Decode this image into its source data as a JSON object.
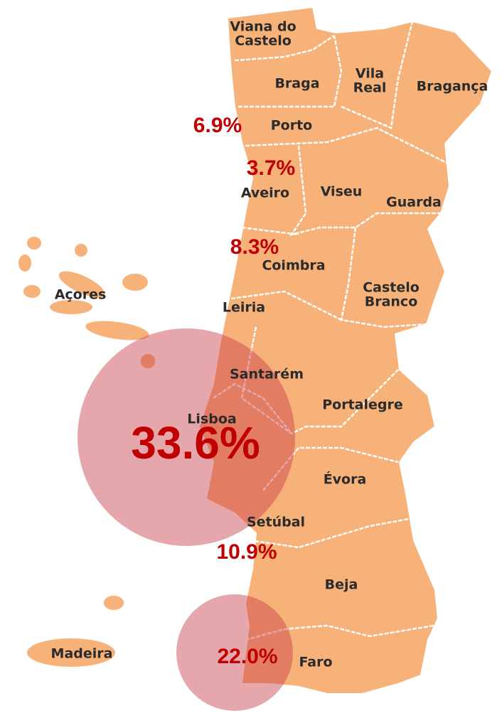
{
  "districts": [
    {
      "lines": [
        "Viana do",
        "Castelo"
      ]
    },
    {
      "lines": [
        "Braga"
      ]
    },
    {
      "lines": [
        "Vila",
        "Real"
      ]
    },
    {
      "lines": [
        "Bragança"
      ]
    },
    {
      "lines": [
        "Porto"
      ]
    },
    {
      "lines": [
        "Aveiro"
      ]
    },
    {
      "lines": [
        "Viseu"
      ]
    },
    {
      "lines": [
        "Guarda"
      ]
    },
    {
      "lines": [
        "Coimbra"
      ]
    },
    {
      "lines": [
        "Castelo",
        "Branco"
      ]
    },
    {
      "lines": [
        "Leiria"
      ]
    },
    {
      "lines": [
        "Açores"
      ]
    },
    {
      "lines": [
        "Santarém"
      ]
    },
    {
      "lines": [
        "Portalegre"
      ]
    },
    {
      "lines": [
        "Lisboa"
      ]
    },
    {
      "lines": [
        "Évora"
      ]
    },
    {
      "lines": [
        "Setúbal"
      ]
    },
    {
      "lines": [
        "Beja"
      ]
    },
    {
      "lines": [
        "Madeira"
      ]
    },
    {
      "lines": [
        "Faro"
      ]
    }
  ],
  "shares": [
    {
      "value": 6.9,
      "label": "6.9%"
    },
    {
      "value": 3.7,
      "label": "3.7%"
    },
    {
      "value": 8.3,
      "label": "8.3%"
    },
    {
      "value": 33.6,
      "label": "33.6%"
    },
    {
      "value": 10.9,
      "label": "10.9%"
    },
    {
      "value": 22.0,
      "label": "22.0%"
    }
  ]
}
